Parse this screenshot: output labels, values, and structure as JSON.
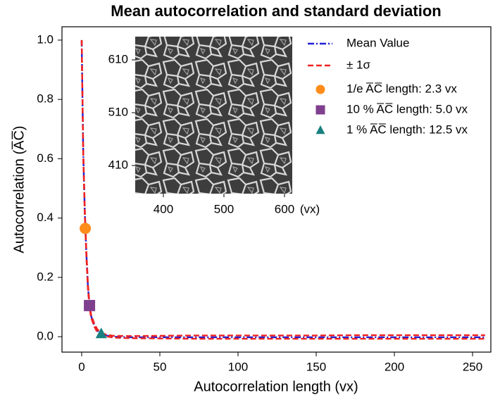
{
  "chart_data": {
    "type": "line",
    "title": "Mean autocorrelation and standard deviation",
    "xlabel": "Autocorrelation length (vx)",
    "ylabel": "Autocorrelation (A̅C̅)",
    "xlim": [
      -12.6,
      261.7
    ],
    "ylim": [
      -0.052,
      1.045
    ],
    "xticks": [
      0,
      50,
      100,
      150,
      200,
      250
    ],
    "yticks": [
      {
        "value": 0,
        "label": "0.0"
      },
      0.2,
      0.4,
      0.6,
      0.8,
      {
        "value": 1,
        "label": "1.0"
      }
    ],
    "x": [
      0,
      1,
      2,
      3,
      4,
      5,
      6,
      8,
      10,
      12,
      15,
      20,
      30,
      50,
      75,
      100,
      125,
      150,
      175,
      200,
      225,
      250,
      258
    ],
    "series": [
      {
        "name": "Mean Value",
        "color": "#1f1fd6",
        "style": "dashdot",
        "values": [
          1,
          0.62,
          0.42,
          0.28,
          0.17,
          0.105,
          0.07,
          0.04,
          0.02,
          0.012,
          0.005,
          0,
          -0.002,
          -0.002,
          -0.002,
          -0.002,
          -0.002,
          -0.002,
          -0.002,
          -0.002,
          -0.002,
          -0.002,
          -0.002
        ]
      },
      {
        "name": "± 1σ",
        "color": "#ee2222",
        "style": "dashed",
        "upper": [
          1,
          0.63,
          0.43,
          0.29,
          0.18,
          0.11,
          0.075,
          0.045,
          0.025,
          0.016,
          0.008,
          0.003,
          0.002,
          0.003,
          0.004,
          0.004,
          0.004,
          0.004,
          0.005,
          0.005,
          0.005,
          0.005,
          0.005
        ],
        "lower": [
          1,
          0.61,
          0.41,
          0.27,
          0.16,
          0.1,
          0.065,
          0.035,
          0.015,
          0.008,
          0.002,
          -0.003,
          -0.005,
          -0.006,
          -0.007,
          -0.007,
          -0.007,
          -0.007,
          -0.007,
          -0.007,
          -0.007,
          -0.007,
          -0.007
        ]
      }
    ],
    "markers": [
      {
        "name": "1/e A̅C̅ length: 2.3 vx",
        "color": "#ff8c1a",
        "shape": "circle",
        "x": 2.3,
        "y": 0.365
      },
      {
        "name": "10 % A̅C̅ length: 5.0 vx",
        "color": "#7f3f8f",
        "shape": "square",
        "x": 5.0,
        "y": 0.105
      },
      {
        "name": "1 % A̅C̅ length: 12.5 vx",
        "color": "#1a8080",
        "shape": "triangle",
        "x": 12.5,
        "y": 0.01
      }
    ],
    "inset": {
      "xlim": [
        353.5,
        612.8
      ],
      "ylim": [
        356.7,
        654
      ],
      "xticks": [
        400,
        500,
        600
      ],
      "yticks": [
        410,
        510,
        610
      ],
      "unit": "(vx)"
    }
  }
}
